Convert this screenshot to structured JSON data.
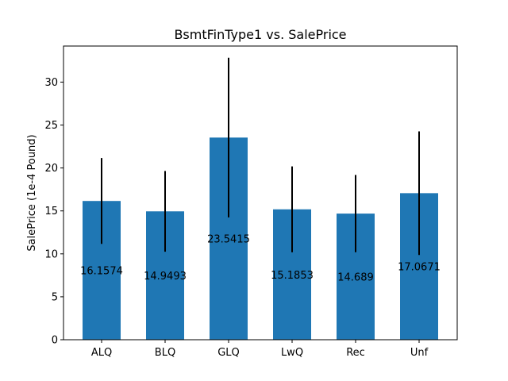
{
  "chart_data": {
    "type": "bar",
    "title": "BsmtFinType1 vs. SalePrice",
    "xlabel": "",
    "ylabel": "SalePrice (1e-4 Pound)",
    "categories": [
      "ALQ",
      "BLQ",
      "GLQ",
      "LwQ",
      "Rec",
      "Unf"
    ],
    "values": [
      16.1574,
      14.9493,
      23.5415,
      15.1853,
      14.689,
      17.0671
    ],
    "value_labels": [
      "16.1574",
      "14.9493",
      "23.5415",
      "15.1853",
      "14.689",
      "17.0671"
    ],
    "error": [
      5.0,
      4.7,
      9.3,
      5.0,
      4.5,
      7.2
    ],
    "ylim": [
      0,
      34.2
    ],
    "yticks": [
      0,
      5,
      10,
      15,
      20,
      25,
      30
    ],
    "bar_color": "#1f77b4",
    "error_color": "#000000",
    "grid": false,
    "legend": "none"
  }
}
